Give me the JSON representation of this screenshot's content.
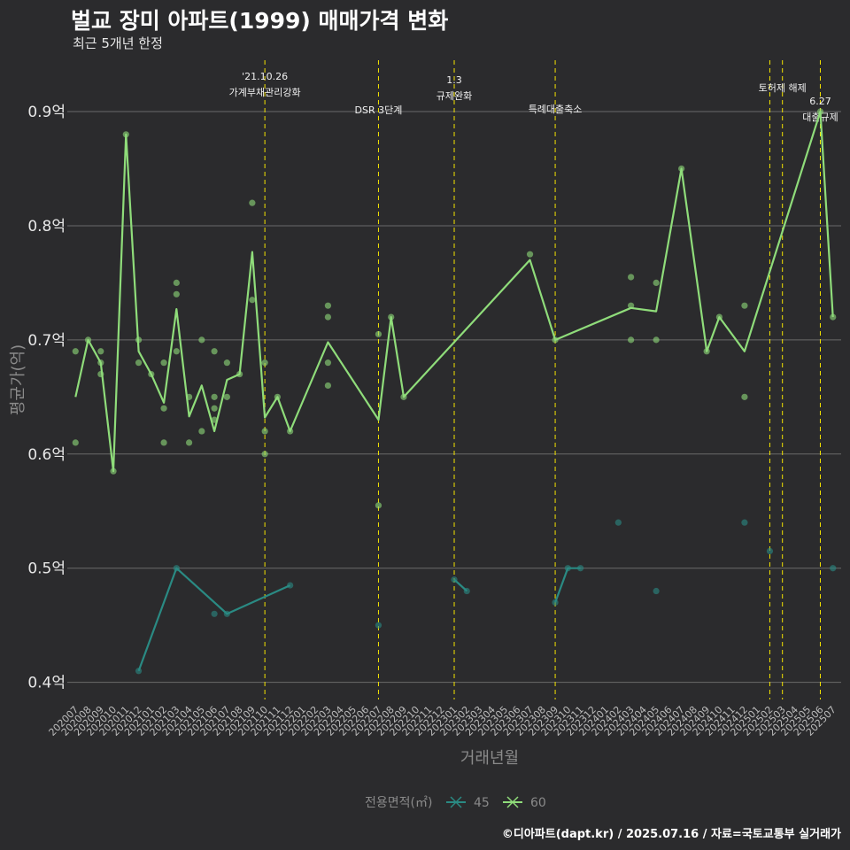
{
  "title": "벌교 장미 아파트(1999) 매매가격 변화",
  "subtitle": "최근 5개년 한정",
  "caption": "©디아파트(dapt.kr) / 2025.07.16 / 자료=국토교통부 실거래가",
  "chart_data": {
    "type": "line",
    "xlabel": "거래년월",
    "ylabel": "평균가(억)",
    "ylim": [
      0.385,
      0.945
    ],
    "yticks": [
      0.4,
      0.5,
      0.6,
      0.7,
      0.8,
      0.9
    ],
    "ytick_labels": [
      "0.4억",
      "0.5억",
      "0.6억",
      "0.7억",
      "0.8억",
      "0.9억"
    ],
    "categories": [
      "202007",
      "202008",
      "202009",
      "202010",
      "202011",
      "202012",
      "202101",
      "202102",
      "202103",
      "202104",
      "202105",
      "202106",
      "202107",
      "202108",
      "202109",
      "202110",
      "202111",
      "202112",
      "202201",
      "202202",
      "202203",
      "202204",
      "202205",
      "202206",
      "202207",
      "202208",
      "202209",
      "202210",
      "202211",
      "202212",
      "202301",
      "202302",
      "202303",
      "202304",
      "202305",
      "202306",
      "202307",
      "202308",
      "202309",
      "202310",
      "202311",
      "202312",
      "202401",
      "202402",
      "202403",
      "202404",
      "202405",
      "202406",
      "202407",
      "202408",
      "202409",
      "202410",
      "202411",
      "202412",
      "202501",
      "202502",
      "202503",
      "202504",
      "202505",
      "202506",
      "202507"
    ],
    "legend_title": "전용면적(㎡)",
    "series": [
      {
        "name": "45",
        "color": "#2a8a83",
        "line": [
          {
            "x": "202012",
            "y": 0.41
          },
          {
            "x": "202103",
            "y": 0.5
          },
          {
            "x": "202107",
            "y": 0.46
          },
          {
            "x": "202112",
            "y": 0.485
          },
          null,
          {
            "x": "202301",
            "y": 0.49
          },
          {
            "x": "202302",
            "y": 0.48
          },
          null,
          {
            "x": "202309",
            "y": 0.47
          },
          {
            "x": "202310",
            "y": 0.5
          },
          {
            "x": "202311",
            "y": 0.5
          }
        ],
        "points": [
          {
            "x": "202012",
            "y": 0.41
          },
          {
            "x": "202103",
            "y": 0.5
          },
          {
            "x": "202106",
            "y": 0.46
          },
          {
            "x": "202107",
            "y": 0.46
          },
          {
            "x": "202112",
            "y": 0.485
          },
          {
            "x": "202207",
            "y": 0.45
          },
          {
            "x": "202301",
            "y": 0.49
          },
          {
            "x": "202302",
            "y": 0.48
          },
          {
            "x": "202309",
            "y": 0.47
          },
          {
            "x": "202310",
            "y": 0.5
          },
          {
            "x": "202311",
            "y": 0.5
          },
          {
            "x": "202402",
            "y": 0.54
          },
          {
            "x": "202405",
            "y": 0.48
          },
          {
            "x": "202412",
            "y": 0.54
          },
          {
            "x": "202502",
            "y": 0.515
          },
          {
            "x": "202507",
            "y": 0.5
          }
        ]
      },
      {
        "name": "60",
        "color": "#8fdc7a",
        "line": [
          {
            "x": "202007",
            "y": 0.65
          },
          {
            "x": "202008",
            "y": 0.7
          },
          {
            "x": "202009",
            "y": 0.68
          },
          {
            "x": "202010",
            "y": 0.585
          },
          {
            "x": "202011",
            "y": 0.88
          },
          {
            "x": "202012",
            "y": 0.69
          },
          {
            "x": "202101",
            "y": 0.67
          },
          {
            "x": "202102",
            "y": 0.645
          },
          {
            "x": "202103",
            "y": 0.727
          },
          {
            "x": "202104",
            "y": 0.633
          },
          {
            "x": "202105",
            "y": 0.66
          },
          {
            "x": "202106",
            "y": 0.62
          },
          {
            "x": "202107",
            "y": 0.665
          },
          {
            "x": "202108",
            "y": 0.67
          },
          {
            "x": "202109",
            "y": 0.777
          },
          {
            "x": "202110",
            "y": 0.632
          },
          {
            "x": "202111",
            "y": 0.65
          },
          {
            "x": "202112",
            "y": 0.62
          },
          {
            "x": "202203",
            "y": 0.698
          },
          {
            "x": "202207",
            "y": 0.63
          },
          {
            "x": "202208",
            "y": 0.72
          },
          {
            "x": "202209",
            "y": 0.65
          },
          {
            "x": "202307",
            "y": 0.77
          },
          {
            "x": "202309",
            "y": 0.7
          },
          {
            "x": "202403",
            "y": 0.728
          },
          {
            "x": "202405",
            "y": 0.725
          },
          {
            "x": "202407",
            "y": 0.85
          },
          {
            "x": "202409",
            "y": 0.69
          },
          {
            "x": "202410",
            "y": 0.72
          },
          {
            "x": "202412",
            "y": 0.69
          },
          {
            "x": "202506",
            "y": 0.9
          },
          {
            "x": "202507",
            "y": 0.72
          }
        ],
        "points": [
          {
            "x": "202007",
            "y": 0.69
          },
          {
            "x": "202007",
            "y": 0.61
          },
          {
            "x": "202008",
            "y": 0.7
          },
          {
            "x": "202009",
            "y": 0.69
          },
          {
            "x": "202009",
            "y": 0.68
          },
          {
            "x": "202009",
            "y": 0.67
          },
          {
            "x": "202010",
            "y": 0.585
          },
          {
            "x": "202011",
            "y": 0.88
          },
          {
            "x": "202012",
            "y": 0.7
          },
          {
            "x": "202012",
            "y": 0.68
          },
          {
            "x": "202101",
            "y": 0.67
          },
          {
            "x": "202102",
            "y": 0.68
          },
          {
            "x": "202102",
            "y": 0.64
          },
          {
            "x": "202102",
            "y": 0.61
          },
          {
            "x": "202103",
            "y": 0.75
          },
          {
            "x": "202103",
            "y": 0.74
          },
          {
            "x": "202103",
            "y": 0.69
          },
          {
            "x": "202104",
            "y": 0.65
          },
          {
            "x": "202104",
            "y": 0.61
          },
          {
            "x": "202105",
            "y": 0.7
          },
          {
            "x": "202105",
            "y": 0.62
          },
          {
            "x": "202106",
            "y": 0.69
          },
          {
            "x": "202106",
            "y": 0.65
          },
          {
            "x": "202106",
            "y": 0.64
          },
          {
            "x": "202106",
            "y": 0.63
          },
          {
            "x": "202107",
            "y": 0.68
          },
          {
            "x": "202107",
            "y": 0.65
          },
          {
            "x": "202108",
            "y": 0.67
          },
          {
            "x": "202109",
            "y": 0.82
          },
          {
            "x": "202109",
            "y": 0.735
          },
          {
            "x": "202110",
            "y": 0.68
          },
          {
            "x": "202110",
            "y": 0.62
          },
          {
            "x": "202110",
            "y": 0.6
          },
          {
            "x": "202111",
            "y": 0.65
          },
          {
            "x": "202112",
            "y": 0.62
          },
          {
            "x": "202203",
            "y": 0.73
          },
          {
            "x": "202203",
            "y": 0.72
          },
          {
            "x": "202203",
            "y": 0.68
          },
          {
            "x": "202203",
            "y": 0.66
          },
          {
            "x": "202207",
            "y": 0.705
          },
          {
            "x": "202207",
            "y": 0.555
          },
          {
            "x": "202208",
            "y": 0.72
          },
          {
            "x": "202209",
            "y": 0.65
          },
          {
            "x": "202307",
            "y": 0.775
          },
          {
            "x": "202309",
            "y": 0.7
          },
          {
            "x": "202403",
            "y": 0.755
          },
          {
            "x": "202403",
            "y": 0.73
          },
          {
            "x": "202403",
            "y": 0.7
          },
          {
            "x": "202405",
            "y": 0.75
          },
          {
            "x": "202405",
            "y": 0.7
          },
          {
            "x": "202407",
            "y": 0.85
          },
          {
            "x": "202409",
            "y": 0.69
          },
          {
            "x": "202410",
            "y": 0.72
          },
          {
            "x": "202412",
            "y": 0.73
          },
          {
            "x": "202412",
            "y": 0.65
          },
          {
            "x": "202506",
            "y": 0.9
          },
          {
            "x": "202507",
            "y": 0.72
          }
        ]
      }
    ],
    "events": [
      {
        "x": "202110",
        "lines": [
          "'21.10.26",
          "가계부채관리강화"
        ]
      },
      {
        "x": "202207",
        "lines": [
          "DSR 3단계"
        ]
      },
      {
        "x": "202301",
        "lines": [
          "1.3",
          "규제완화"
        ]
      },
      {
        "x": "202309",
        "lines": [
          "특례대출축소"
        ]
      },
      {
        "x": "202502",
        "lines": []
      },
      {
        "x": "202503",
        "lines": [
          "토허제 해제"
        ]
      },
      {
        "x": "202506",
        "lines": [
          "6.27",
          "대출규제"
        ]
      }
    ]
  }
}
